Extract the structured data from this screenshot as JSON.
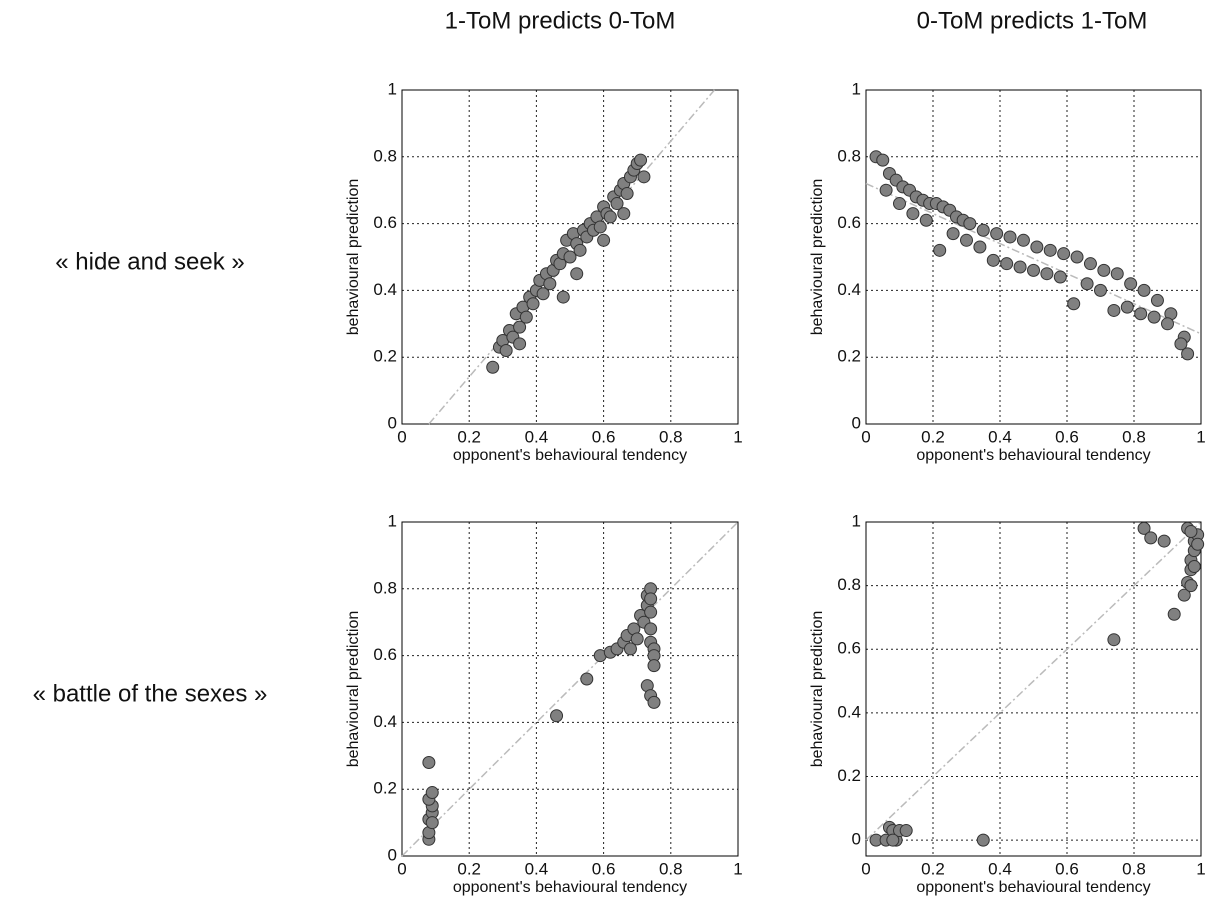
{
  "column_titles": [
    "1-ToM predicts 0-ToM",
    "0-ToM predicts 1-ToM"
  ],
  "row_labels": [
    "« hide and seek »",
    "« battle of the sexes »"
  ],
  "chart_data": [
    {
      "type": "scatter",
      "xlabel": "opponent's behavioural tendency",
      "ylabel": "behavioural prediction",
      "x": [
        0.27,
        0.29,
        0.3,
        0.31,
        0.32,
        0.33,
        0.34,
        0.35,
        0.36,
        0.37,
        0.38,
        0.39,
        0.4,
        0.41,
        0.42,
        0.43,
        0.44,
        0.45,
        0.46,
        0.47,
        0.48,
        0.49,
        0.5,
        0.51,
        0.52,
        0.53,
        0.54,
        0.55,
        0.56,
        0.57,
        0.58,
        0.59,
        0.6,
        0.61,
        0.62,
        0.63,
        0.64,
        0.65,
        0.66,
        0.67,
        0.68,
        0.69,
        0.7,
        0.71,
        0.72,
        0.48,
        0.52,
        0.35,
        0.6,
        0.66
      ],
      "values": [
        0.17,
        0.23,
        0.25,
        0.22,
        0.28,
        0.26,
        0.33,
        0.29,
        0.35,
        0.32,
        0.38,
        0.36,
        0.4,
        0.43,
        0.39,
        0.45,
        0.42,
        0.46,
        0.49,
        0.48,
        0.51,
        0.55,
        0.5,
        0.57,
        0.54,
        0.52,
        0.58,
        0.56,
        0.6,
        0.58,
        0.62,
        0.59,
        0.65,
        0.63,
        0.62,
        0.68,
        0.66,
        0.7,
        0.72,
        0.69,
        0.74,
        0.76,
        0.78,
        0.79,
        0.74,
        0.38,
        0.45,
        0.24,
        0.55,
        0.63
      ],
      "color": "#808080",
      "edge_color": "#333333",
      "xlim": [
        0,
        1
      ],
      "ylim": [
        0,
        1
      ],
      "xticks": [
        0,
        0.2,
        0.4,
        0.6,
        0.8,
        1
      ],
      "yticks": [
        0,
        0.2,
        0.4,
        0.6,
        0.8,
        1
      ],
      "grid": true,
      "reference_line": {
        "x": [
          0.08,
          0.93
        ],
        "y": [
          0,
          1
        ],
        "color": "#bbbbbb"
      }
    },
    {
      "type": "scatter",
      "xlabel": "opponent's behavioural tendency",
      "ylabel": "behavioural prediction",
      "x": [
        0.03,
        0.05,
        0.07,
        0.09,
        0.11,
        0.13,
        0.15,
        0.17,
        0.19,
        0.21,
        0.23,
        0.25,
        0.27,
        0.29,
        0.31,
        0.35,
        0.39,
        0.43,
        0.47,
        0.51,
        0.55,
        0.59,
        0.63,
        0.67,
        0.71,
        0.75,
        0.79,
        0.83,
        0.87,
        0.91,
        0.95,
        0.06,
        0.1,
        0.14,
        0.18,
        0.22,
        0.26,
        0.3,
        0.34,
        0.38,
        0.42,
        0.46,
        0.5,
        0.54,
        0.58,
        0.62,
        0.66,
        0.7,
        0.74,
        0.78,
        0.82,
        0.86,
        0.9,
        0.94,
        0.96
      ],
      "values": [
        0.8,
        0.79,
        0.75,
        0.73,
        0.71,
        0.7,
        0.68,
        0.67,
        0.66,
        0.66,
        0.65,
        0.64,
        0.62,
        0.61,
        0.6,
        0.58,
        0.57,
        0.56,
        0.55,
        0.53,
        0.52,
        0.51,
        0.5,
        0.48,
        0.46,
        0.45,
        0.42,
        0.4,
        0.37,
        0.33,
        0.26,
        0.7,
        0.66,
        0.63,
        0.61,
        0.52,
        0.57,
        0.55,
        0.53,
        0.49,
        0.48,
        0.47,
        0.46,
        0.45,
        0.44,
        0.36,
        0.42,
        0.4,
        0.34,
        0.35,
        0.33,
        0.32,
        0.3,
        0.24,
        0.21
      ],
      "color": "#808080",
      "edge_color": "#333333",
      "xlim": [
        0,
        1
      ],
      "ylim": [
        0,
        1
      ],
      "xticks": [
        0,
        0.2,
        0.4,
        0.6,
        0.8,
        1
      ],
      "yticks": [
        0,
        0.2,
        0.4,
        0.6,
        0.8,
        1
      ],
      "grid": true,
      "reference_line": {
        "x": [
          0,
          1
        ],
        "y": [
          0.72,
          0.27
        ],
        "color": "#bbbbbb"
      }
    },
    {
      "type": "scatter",
      "xlabel": "opponent's behavioural tendency",
      "ylabel": "behavioural prediction",
      "x": [
        0.08,
        0.08,
        0.08,
        0.09,
        0.09,
        0.08,
        0.09,
        0.08,
        0.09,
        0.46,
        0.55,
        0.59,
        0.62,
        0.64,
        0.66,
        0.67,
        0.68,
        0.69,
        0.7,
        0.71,
        0.72,
        0.73,
        0.73,
        0.74,
        0.74,
        0.74,
        0.74,
        0.74,
        0.75,
        0.75,
        0.75,
        0.73,
        0.74,
        0.75
      ],
      "values": [
        0.05,
        0.07,
        0.11,
        0.13,
        0.15,
        0.17,
        0.19,
        0.28,
        0.1,
        0.42,
        0.53,
        0.6,
        0.61,
        0.62,
        0.64,
        0.66,
        0.62,
        0.68,
        0.65,
        0.72,
        0.7,
        0.75,
        0.78,
        0.8,
        0.77,
        0.73,
        0.68,
        0.64,
        0.62,
        0.6,
        0.57,
        0.51,
        0.48,
        0.46
      ],
      "color": "#808080",
      "edge_color": "#333333",
      "xlim": [
        0,
        1
      ],
      "ylim": [
        0,
        1
      ],
      "xticks": [
        0,
        0.2,
        0.4,
        0.6,
        0.8,
        1
      ],
      "yticks": [
        0,
        0.2,
        0.4,
        0.6,
        0.8,
        1
      ],
      "grid": true,
      "reference_line": {
        "x": [
          0,
          1
        ],
        "y": [
          0,
          1
        ],
        "color": "#bbbbbb"
      }
    },
    {
      "type": "scatter",
      "xlabel": "opponent's behavioural tendency",
      "ylabel": "behavioural prediction",
      "x": [
        0.03,
        0.06,
        0.07,
        0.08,
        0.09,
        0.1,
        0.12,
        0.08,
        0.35,
        0.74,
        0.83,
        0.85,
        0.89,
        0.92,
        0.95,
        0.96,
        0.97,
        0.97,
        0.98,
        0.98,
        0.99,
        0.96,
        0.97,
        0.99,
        0.98,
        0.97
      ],
      "values": [
        0,
        0,
        0.04,
        0.03,
        0,
        0.03,
        0.03,
        0,
        0,
        0.63,
        0.98,
        0.95,
        0.94,
        0.71,
        0.77,
        0.81,
        0.85,
        0.88,
        0.91,
        0.94,
        0.96,
        0.98,
        0.97,
        0.93,
        0.86,
        0.8
      ],
      "color": "#808080",
      "edge_color": "#333333",
      "xlim": [
        0,
        1
      ],
      "ylim": [
        -0.05,
        1
      ],
      "xticks": [
        0,
        0.2,
        0.4,
        0.6,
        0.8,
        1
      ],
      "yticks": [
        0,
        0.2,
        0.4,
        0.6,
        0.8,
        1
      ],
      "grid": true,
      "reference_line": {
        "x": [
          0,
          1
        ],
        "y": [
          0,
          1
        ],
        "color": "#bbbbbb"
      }
    }
  ]
}
